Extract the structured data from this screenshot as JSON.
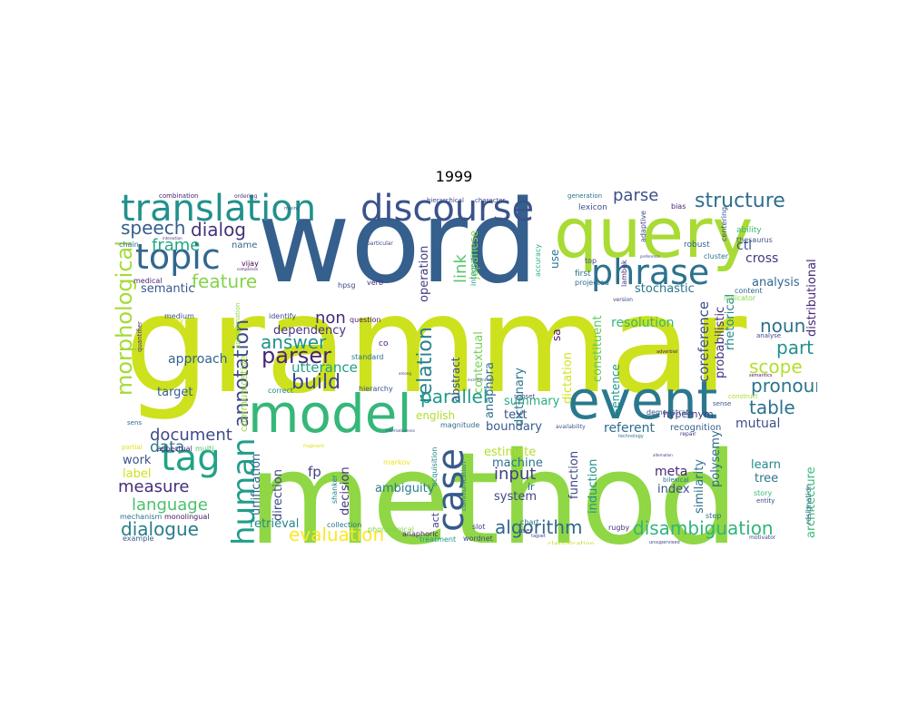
{
  "title": "1999",
  "words": [
    {
      "text": "grammar",
      "color": "#cde11d"
    },
    {
      "text": "method",
      "color": "#8fd744"
    },
    {
      "text": "word",
      "color": "#355f8d"
    },
    {
      "text": "query",
      "color": "#a8db34"
    },
    {
      "text": "model",
      "color": "#35b779"
    },
    {
      "text": "event",
      "color": "#2a788e"
    },
    {
      "text": "discourse",
      "color": "#3b528b"
    },
    {
      "text": "translation",
      "color": "#21918c"
    },
    {
      "text": "topic",
      "color": "#31688e"
    },
    {
      "text": "phrase",
      "color": "#2c728e"
    },
    {
      "text": "tag",
      "color": "#20a386"
    },
    {
      "text": "case",
      "color": "#375a8c"
    },
    {
      "text": "human",
      "color": "#1f9e89"
    },
    {
      "text": "structure",
      "color": "#2e6e8e"
    },
    {
      "text": "annotation",
      "color": "#3e4989"
    },
    {
      "text": "parse",
      "color": "#3d4e8a"
    },
    {
      "text": "dialog",
      "color": "#46337e"
    },
    {
      "text": "speech",
      "color": "#355e8d"
    },
    {
      "text": "frame",
      "color": "#22a884"
    },
    {
      "text": "feature",
      "color": "#84d44b"
    },
    {
      "text": "morphological",
      "color": "#a5db36"
    },
    {
      "text": "parser",
      "color": "#482576"
    },
    {
      "text": "answer",
      "color": "#20928c"
    },
    {
      "text": "build",
      "color": "#404588"
    },
    {
      "text": "relation",
      "color": "#26828e"
    },
    {
      "text": "parallel",
      "color": "#1e9c89"
    },
    {
      "text": "pronoun",
      "color": "#2b758e"
    },
    {
      "text": "scope",
      "color": "#b5de2b"
    },
    {
      "text": "noun",
      "color": "#2c718e"
    },
    {
      "text": "part",
      "color": "#21918c"
    },
    {
      "text": "table",
      "color": "#2d708e"
    },
    {
      "text": "algorithm",
      "color": "#30678d"
    },
    {
      "text": "disambiguation",
      "color": "#31b57b"
    },
    {
      "text": "evaluation",
      "color": "#fde725"
    },
    {
      "text": "dialogue",
      "color": "#287d8e"
    },
    {
      "text": "language",
      "color": "#4ac16d"
    },
    {
      "text": "measure",
      "color": "#472d7b"
    },
    {
      "text": "document",
      "color": "#3e4a89"
    },
    {
      "text": "data",
      "color": "#2a788e"
    },
    {
      "text": "input",
      "color": "#433e85"
    },
    {
      "text": "link",
      "color": "#56c667"
    },
    {
      "text": "non",
      "color": "#482878"
    },
    {
      "text": "approach",
      "color": "#33638d"
    },
    {
      "text": "utterance",
      "color": "#1fa088"
    },
    {
      "text": "semantic",
      "color": "#38588c"
    },
    {
      "text": "dependency",
      "color": "#46327e"
    },
    {
      "text": "resolution",
      "color": "#32b67a"
    },
    {
      "text": "coreference",
      "color": "#3d4d8a"
    },
    {
      "text": "cross",
      "color": "#453581"
    },
    {
      "text": "analysis",
      "color": "#31678e"
    },
    {
      "text": "stochastic",
      "color": "#2a768e"
    },
    {
      "text": "target",
      "color": "#33628d"
    },
    {
      "text": "work",
      "color": "#3b528b"
    },
    {
      "text": "label",
      "color": "#d0e11c"
    },
    {
      "text": "boundary",
      "color": "#375a8c"
    },
    {
      "text": "text",
      "color": "#3a548c"
    },
    {
      "text": "summary",
      "color": "#26ad81"
    },
    {
      "text": "estimate",
      "color": "#b5de2b"
    },
    {
      "text": "machine",
      "color": "#2c718e"
    },
    {
      "text": "system",
      "color": "#404588"
    },
    {
      "text": "ambiguity",
      "color": "#287c8e"
    },
    {
      "text": "retrieval",
      "color": "#24868e"
    },
    {
      "text": "meta",
      "color": "#482878"
    },
    {
      "text": "index",
      "color": "#3b518b"
    },
    {
      "text": "learn",
      "color": "#23898e"
    },
    {
      "text": "tree",
      "color": "#2a778e"
    },
    {
      "text": "referent",
      "color": "#2e6d8e"
    },
    {
      "text": "mutual",
      "color": "#3c4f8a"
    },
    {
      "text": "architecture",
      "color": "#3bbb75"
    },
    {
      "text": "distributional",
      "color": "#482677"
    },
    {
      "text": "english",
      "color": "#b2dd2d"
    },
    {
      "text": "dictionary",
      "color": "#2c738e"
    },
    {
      "text": "contextual",
      "color": "#74d055"
    },
    {
      "text": "japanese",
      "color": "#8fd744"
    },
    {
      "text": "abstract",
      "color": "#3b528b"
    },
    {
      "text": "anaphora",
      "color": "#2c728e"
    },
    {
      "text": "operation",
      "color": "#443a83"
    },
    {
      "text": "sentence",
      "color": "#1f9a8a"
    },
    {
      "text": "constituent",
      "color": "#5ec962"
    },
    {
      "text": "dictation",
      "color": "#d2e21b"
    },
    {
      "text": "probabilistic",
      "color": "#46307e"
    },
    {
      "text": "rhetorical",
      "color": "#23898e"
    },
    {
      "text": "ctl",
      "color": "#3c508b"
    },
    {
      "text": "fp",
      "color": "#423f85"
    },
    {
      "text": "direction",
      "color": "#3e4a89"
    },
    {
      "text": "decision",
      "color": "#453781"
    },
    {
      "text": "unification",
      "color": "#31678e"
    },
    {
      "text": "induction",
      "color": "#1f968b"
    },
    {
      "text": "function",
      "color": "#3e4a89"
    },
    {
      "text": "similarity",
      "color": "#2d718e"
    },
    {
      "text": "polysemy",
      "color": "#2e6d8e"
    },
    {
      "text": "communicative",
      "color": "#a0da39"
    },
    {
      "text": "hypernym",
      "color": "#433d84"
    },
    {
      "text": "recognition",
      "color": "#35608d"
    },
    {
      "text": "sa",
      "color": "#48186a"
    },
    {
      "text": "use",
      "color": "#2a778e"
    },
    {
      "text": "ir",
      "color": "#31688e"
    },
    {
      "text": "medium",
      "color": "#3b528b"
    },
    {
      "text": "quality",
      "color": "#d8e219"
    },
    {
      "text": "aspectual",
      "color": "#482576"
    },
    {
      "text": "multi",
      "color": "#50c46a"
    },
    {
      "text": "partial",
      "color": "#dde318"
    },
    {
      "text": "sens",
      "color": "#31688e"
    },
    {
      "text": "mechanism",
      "color": "#2c728e"
    },
    {
      "text": "monolingual",
      "color": "#471063"
    },
    {
      "text": "example",
      "color": "#33628d"
    },
    {
      "text": "collection",
      "color": "#2b748e"
    },
    {
      "text": "phonological",
      "color": "#84d44b"
    },
    {
      "text": "anaphoric",
      "color": "#482475"
    },
    {
      "text": "treatment",
      "color": "#1f9a8a"
    },
    {
      "text": "wordnet",
      "color": "#3f4788"
    },
    {
      "text": "slot",
      "color": "#404688"
    },
    {
      "text": "rugby",
      "color": "#46327e"
    },
    {
      "text": "classification",
      "color": "#c2df23"
    },
    {
      "text": "step",
      "color": "#2d708e"
    },
    {
      "text": "story",
      "color": "#38b977"
    },
    {
      "text": "entity",
      "color": "#3f4889"
    },
    {
      "text": "motivator",
      "color": "#404688"
    },
    {
      "text": "vijay",
      "color": "#440154"
    },
    {
      "text": "hpsg",
      "color": "#3f4788"
    },
    {
      "text": "identify",
      "color": "#3c4f8a"
    },
    {
      "text": "question",
      "color": "#481a6c"
    },
    {
      "text": "standard",
      "color": "#2c718e"
    },
    {
      "text": "correct",
      "color": "#26818e"
    },
    {
      "text": "hierarchy",
      "color": "#3b528b"
    },
    {
      "text": "co",
      "color": "#481d6f"
    },
    {
      "text": "magnitude",
      "color": "#2e6e8e"
    },
    {
      "text": "markov",
      "color": "#ece51b"
    },
    {
      "text": "acquisition",
      "color": "#24878e"
    },
    {
      "text": "communication",
      "color": "#2d708e"
    },
    {
      "text": "act",
      "color": "#3f4788"
    },
    {
      "text": "shanker",
      "color": "#27808e"
    },
    {
      "text": "chart",
      "color": "#2c738e"
    },
    {
      "text": "subset",
      "color": "#3e4c8a"
    },
    {
      "text": "verb",
      "color": "#472f7d"
    },
    {
      "text": "integration",
      "color": "#1f998a"
    },
    {
      "text": "accuracy",
      "color": "#29af7f"
    },
    {
      "text": "lambek",
      "color": "#46307e"
    },
    {
      "text": "adaptive",
      "color": "#3f4788"
    },
    {
      "text": "bias",
      "color": "#482576"
    },
    {
      "text": "lexicon",
      "color": "#3d4e8a"
    },
    {
      "text": "generation",
      "color": "#2c728e"
    },
    {
      "text": "robust",
      "color": "#33638d"
    },
    {
      "text": "cluster",
      "color": "#297a8e"
    },
    {
      "text": "centering",
      "color": "#3b528b"
    },
    {
      "text": "thesaurus",
      "color": "#3a548c"
    },
    {
      "text": "ability",
      "color": "#35b779"
    },
    {
      "text": "content",
      "color": "#31678e"
    },
    {
      "text": "indicator",
      "color": "#8bd646"
    },
    {
      "text": "first",
      "color": "#2d718e"
    },
    {
      "text": "projected",
      "color": "#2e6e8e"
    },
    {
      "text": "top",
      "color": "#414487"
    },
    {
      "text": "user",
      "color": "#3f4788"
    },
    {
      "text": "demonstrate",
      "color": "#3b528b"
    },
    {
      "text": "combination",
      "color": "#482173"
    },
    {
      "text": "ordering",
      "color": "#443983"
    },
    {
      "text": "hierarchical",
      "color": "#3e4a89"
    },
    {
      "text": "character",
      "color": "#3f4788"
    },
    {
      "text": "chain",
      "color": "#2c718e"
    },
    {
      "text": "medical",
      "color": "#482677"
    },
    {
      "text": "name",
      "color": "#31688e"
    },
    {
      "text": "quantifier",
      "color": "#46307e"
    },
    {
      "text": "approximation",
      "color": "#8fd744"
    },
    {
      "text": "particular",
      "color": "#3f4788"
    },
    {
      "text": "version",
      "color": "#414487"
    },
    {
      "text": "semantics",
      "color": "#471365"
    },
    {
      "text": "analyse",
      "color": "#3f4788"
    },
    {
      "text": "sense",
      "color": "#38598c"
    },
    {
      "text": "construct",
      "color": "#addc30"
    },
    {
      "text": "adverbial",
      "color": "#481a6c"
    },
    {
      "text": "availability",
      "color": "#3b528b"
    },
    {
      "text": "technology",
      "color": "#2d708e"
    },
    {
      "text": "repair",
      "color": "#46327e"
    },
    {
      "text": "resignation",
      "color": "#31688e"
    },
    {
      "text": "bilexical",
      "color": "#2c738e"
    },
    {
      "text": "unsupervised",
      "color": "#3f4788"
    },
    {
      "text": "mixing",
      "color": "#3b528b"
    },
    {
      "text": "tagset",
      "color": "#3e4a89"
    },
    {
      "text": "informativeness",
      "color": "#3f4788"
    },
    {
      "text": "among",
      "color": "#414487"
    },
    {
      "text": "incrementality",
      "color": "#3e4a89"
    },
    {
      "text": "interaction",
      "color": "#482677"
    },
    {
      "text": "comparison",
      "color": "#482475"
    },
    {
      "text": "fragment",
      "color": "#dde318"
    },
    {
      "text": "preference",
      "color": "#3f4788"
    },
    {
      "text": "alternation",
      "color": "#46327e"
    }
  ]
}
